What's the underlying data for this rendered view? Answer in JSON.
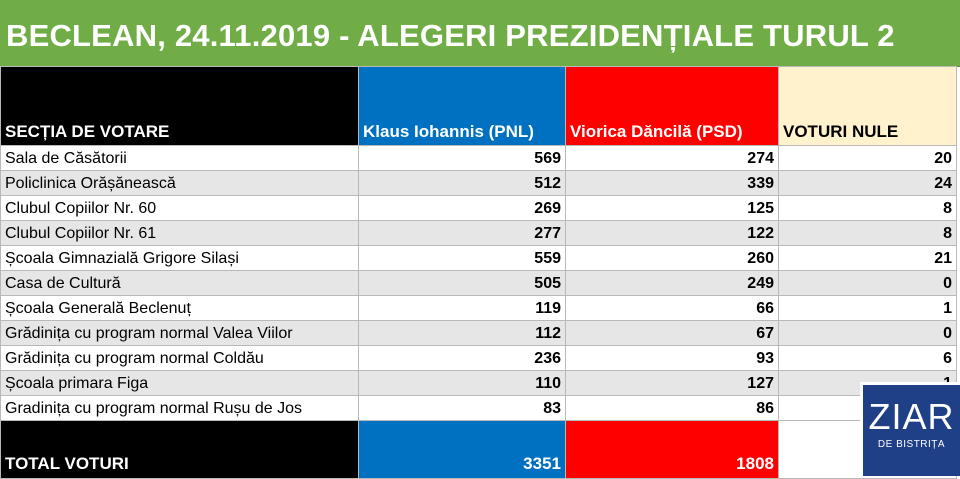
{
  "title": "BECLEAN, 24.11.2019 - ALEGERI PREZIDENȚIALE TURUL 2",
  "headers": {
    "section": "SECȚIA DE VOTARE",
    "iohannis": "Klaus Iohannis (PNL)",
    "dancila": "Viorica Dăncilă (PSD)",
    "nule": "VOTURI NULE"
  },
  "colors": {
    "title_bg": "#70ad47",
    "iohannis": "#0070c0",
    "dancila": "#ff0000",
    "nule_header": "#fff2cc",
    "logo_bg": "#1f3f86"
  },
  "rows": [
    {
      "name": "Sala de Căsătorii",
      "iohannis": "569",
      "dancila": "274",
      "nule": "20"
    },
    {
      "name": "Policlinica Orășănească",
      "iohannis": "512",
      "dancila": "339",
      "nule": "24"
    },
    {
      "name": "Clubul Copiilor Nr. 60",
      "iohannis": "269",
      "dancila": "125",
      "nule": "8"
    },
    {
      "name": "Clubul Copiilor Nr. 61",
      "iohannis": "277",
      "dancila": "122",
      "nule": "8"
    },
    {
      "name": "Școala Gimnazială Grigore Silași",
      "iohannis": "559",
      "dancila": "260",
      "nule": "21"
    },
    {
      "name": "Casa de Cultură",
      "iohannis": "505",
      "dancila": "249",
      "nule": "0"
    },
    {
      "name": "Școala Generală Beclenuț",
      "iohannis": "119",
      "dancila": "66",
      "nule": "1"
    },
    {
      "name": "Grădinița cu program normal Valea Viilor",
      "iohannis": "112",
      "dancila": "67",
      "nule": "0"
    },
    {
      "name": "Grădinița cu program normal Coldău",
      "iohannis": "236",
      "dancila": "93",
      "nule": "6"
    },
    {
      "name": "Școala primara Figa",
      "iohannis": "110",
      "dancila": "127",
      "nule": "1"
    },
    {
      "name": "Gradinița cu program normal Rușu de Jos",
      "iohannis": "83",
      "dancila": "86",
      "nule": ""
    }
  ],
  "total": {
    "label": "TOTAL VOTURI",
    "iohannis": "3351",
    "dancila": "1808"
  },
  "logo": {
    "main": "ZIAR",
    "sub": "DE BISTRIȚA"
  }
}
